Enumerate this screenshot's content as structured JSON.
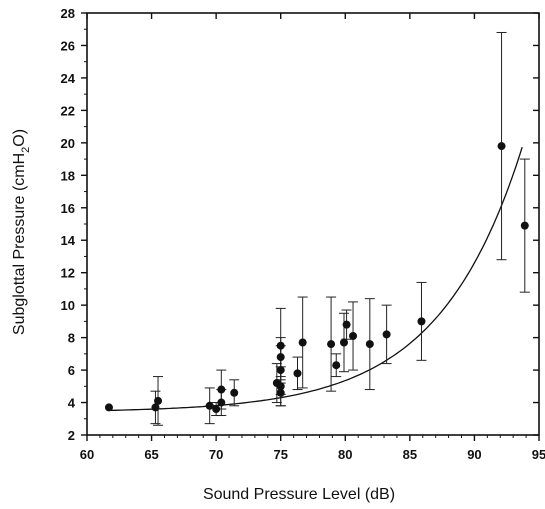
{
  "chart_data": {
    "type": "scatter",
    "xlabel": "Sound Pressure Level  (dB)",
    "ylabel_main": "Subglottal Pressure  (cmH",
    "ylabel_sub": "2",
    "ylabel_end": "O)",
    "xlim": [
      60,
      95
    ],
    "ylim": [
      2,
      28
    ],
    "xticks": [
      60,
      65,
      70,
      75,
      80,
      85,
      90,
      95
    ],
    "yticks": [
      2,
      4,
      6,
      8,
      10,
      12,
      14,
      16,
      18,
      20,
      22,
      24,
      26,
      28
    ],
    "xtick_labels": [
      "60",
      "65",
      "70",
      "75",
      "80",
      "85",
      "90",
      "95"
    ],
    "ytick_labels": [
      "2",
      "4",
      "6",
      "8",
      "10",
      "12",
      "14",
      "16",
      "18",
      "20",
      "22",
      "24",
      "26",
      "28"
    ],
    "points": [
      {
        "x": 61.7,
        "y": 3.7
      },
      {
        "x": 65.3,
        "y": 3.7,
        "ylo": 2.7,
        "yhi": 4.7
      },
      {
        "x": 65.5,
        "y": 4.1,
        "ylo": 2.6,
        "yhi": 5.6
      },
      {
        "x": 69.5,
        "y": 3.8,
        "ylo": 2.7,
        "yhi": 4.9
      },
      {
        "x": 70.0,
        "y": 3.6,
        "ylo": 3.2,
        "yhi": 4.0
      },
      {
        "x": 70.4,
        "y": 4.8,
        "ylo": 3.6,
        "yhi": 6.0
      },
      {
        "x": 70.4,
        "y": 4.0,
        "ylo": 3.2,
        "yhi": 4.8
      },
      {
        "x": 71.4,
        "y": 4.6,
        "ylo": 3.8,
        "yhi": 5.4
      },
      {
        "x": 74.7,
        "y": 5.2,
        "ylo": 4.0,
        "yhi": 6.4
      },
      {
        "x": 75.0,
        "y": 7.5,
        "ylo": 5.2,
        "yhi": 9.8
      },
      {
        "x": 75.0,
        "y": 6.8,
        "ylo": 5.6,
        "yhi": 8.0
      },
      {
        "x": 75.0,
        "y": 6.0,
        "ylo": 4.5,
        "yhi": 7.5
      },
      {
        "x": 75.0,
        "y": 5.0,
        "ylo": 3.8,
        "yhi": 6.2
      },
      {
        "x": 75.0,
        "y": 4.6,
        "ylo": 3.8,
        "yhi": 5.4
      },
      {
        "x": 76.3,
        "y": 5.8,
        "ylo": 4.8,
        "yhi": 6.8
      },
      {
        "x": 76.7,
        "y": 7.7,
        "ylo": 4.9,
        "yhi": 10.5
      },
      {
        "x": 78.9,
        "y": 7.6,
        "ylo": 4.7,
        "yhi": 10.5
      },
      {
        "x": 79.3,
        "y": 6.3,
        "ylo": 5.6,
        "yhi": 7.0
      },
      {
        "x": 79.9,
        "y": 7.7,
        "ylo": 5.9,
        "yhi": 9.5
      },
      {
        "x": 80.1,
        "y": 8.8,
        "ylo": 7.9,
        "yhi": 9.7
      },
      {
        "x": 80.6,
        "y": 8.1,
        "ylo": 6.0,
        "yhi": 10.2
      },
      {
        "x": 81.9,
        "y": 7.6,
        "ylo": 4.8,
        "yhi": 10.4
      },
      {
        "x": 83.2,
        "y": 8.2,
        "ylo": 6.4,
        "yhi": 10.0
      },
      {
        "x": 85.9,
        "y": 9.0,
        "ylo": 6.6,
        "yhi": 11.4
      },
      {
        "x": 92.1,
        "y": 19.8,
        "ylo": 12.8,
        "yhi": 26.8
      },
      {
        "x": 93.9,
        "y": 14.9,
        "ylo": 10.8,
        "yhi": 19.0
      }
    ],
    "fit_curve": {
      "type": "exponential",
      "a": 3.54,
      "b": 1.0,
      "x0": 61.7,
      "k": 0.0768
    }
  }
}
